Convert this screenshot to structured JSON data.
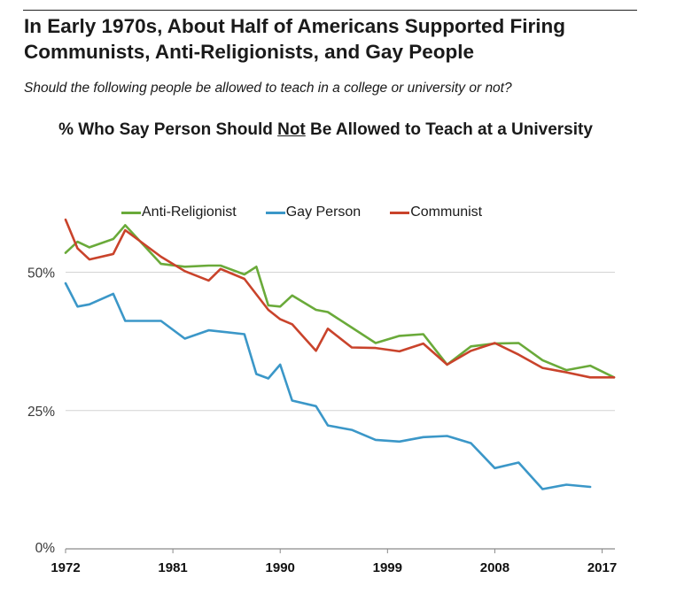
{
  "headline": {
    "line1": "In Early 1970s, About Half of Americans Supported Firing",
    "line2": "Communists, Anti-Religionists, and Gay People"
  },
  "question": "Should the following people be allowed to teach in a college or university or not?",
  "chart_title": {
    "before": "% Who Say Person Should ",
    "emphasis": "Not",
    "after": " Be Allowed to Teach at a University"
  },
  "chart_data": {
    "type": "line",
    "title": "% Who Say Person Should Not Be Allowed to Teach at a University",
    "xlabel": "",
    "ylabel": "",
    "xlim": [
      1972,
      2018
    ],
    "ylim": [
      0,
      60
    ],
    "x_ticks": [
      {
        "value": 1972,
        "label": "1972"
      },
      {
        "value": 1981,
        "label": "1981"
      },
      {
        "value": 1990,
        "label": "1990"
      },
      {
        "value": 1999,
        "label": "1999"
      },
      {
        "value": 2008,
        "label": "2008"
      },
      {
        "value": 2017,
        "label": "2017"
      }
    ],
    "y_ticks": [
      {
        "value": 0,
        "label": "0%"
      },
      {
        "value": 25,
        "label": "25%"
      },
      {
        "value": 50,
        "label": "50%"
      }
    ],
    "grid": true,
    "legend_position": "top",
    "series": [
      {
        "name": "Anti-Religionist",
        "color": "#6aaa3a",
        "x": [
          1972,
          1973,
          1974,
          1976,
          1977,
          1980,
          1982,
          1984,
          1985,
          1987,
          1988,
          1989,
          1990,
          1991,
          1993,
          1994,
          1996,
          1998,
          2000,
          2002,
          2004,
          2006,
          2008,
          2010,
          2012,
          2014,
          2016,
          2018
        ],
        "values": [
          53.5,
          55.5,
          54.5,
          56,
          58.5,
          51.5,
          51,
          51.2,
          51.2,
          49.6,
          51,
          44,
          43.8,
          45.8,
          43.2,
          42.8,
          40,
          37.2,
          38.5,
          38.8,
          33.3,
          36.6,
          37.1,
          37.2,
          34.1,
          32.3,
          33.1,
          31
        ]
      },
      {
        "name": "Gay Person",
        "color": "#3b97c8",
        "x": [
          1972,
          1973,
          1974,
          1976,
          1977,
          1980,
          1982,
          1984,
          1987,
          1988,
          1989,
          1990,
          1991,
          1993,
          1994,
          1996,
          1998,
          2000,
          2002,
          2004,
          2006,
          2008,
          2010,
          2012,
          2014,
          2016
        ],
        "values": [
          48,
          43.8,
          44.2,
          46.1,
          41.2,
          41.2,
          38,
          39.5,
          38.8,
          31.6,
          30.8,
          33.3,
          26.8,
          25.8,
          22.3,
          21.5,
          19.7,
          19.4,
          20.2,
          20.4,
          19.1,
          14.6,
          15.6,
          10.8,
          11.6,
          11.2
        ]
      },
      {
        "name": "Communist",
        "color": "#c9432b",
        "x": [
          1972,
          1973,
          1974,
          1976,
          1977,
          1980,
          1982,
          1984,
          1985,
          1987,
          1989,
          1990,
          1991,
          1993,
          1994,
          1996,
          1998,
          2000,
          2002,
          2004,
          2006,
          2008,
          2010,
          2012,
          2014,
          2016,
          2018
        ],
        "values": [
          59.5,
          54.3,
          52.3,
          53.3,
          57.6,
          52.8,
          50.2,
          48.5,
          50.6,
          48.8,
          43.2,
          41.5,
          40.6,
          35.8,
          39.8,
          36.4,
          36.3,
          35.7,
          37.1,
          33.3,
          35.8,
          37.2,
          35.1,
          32.7,
          31.9,
          31,
          31
        ]
      }
    ]
  }
}
